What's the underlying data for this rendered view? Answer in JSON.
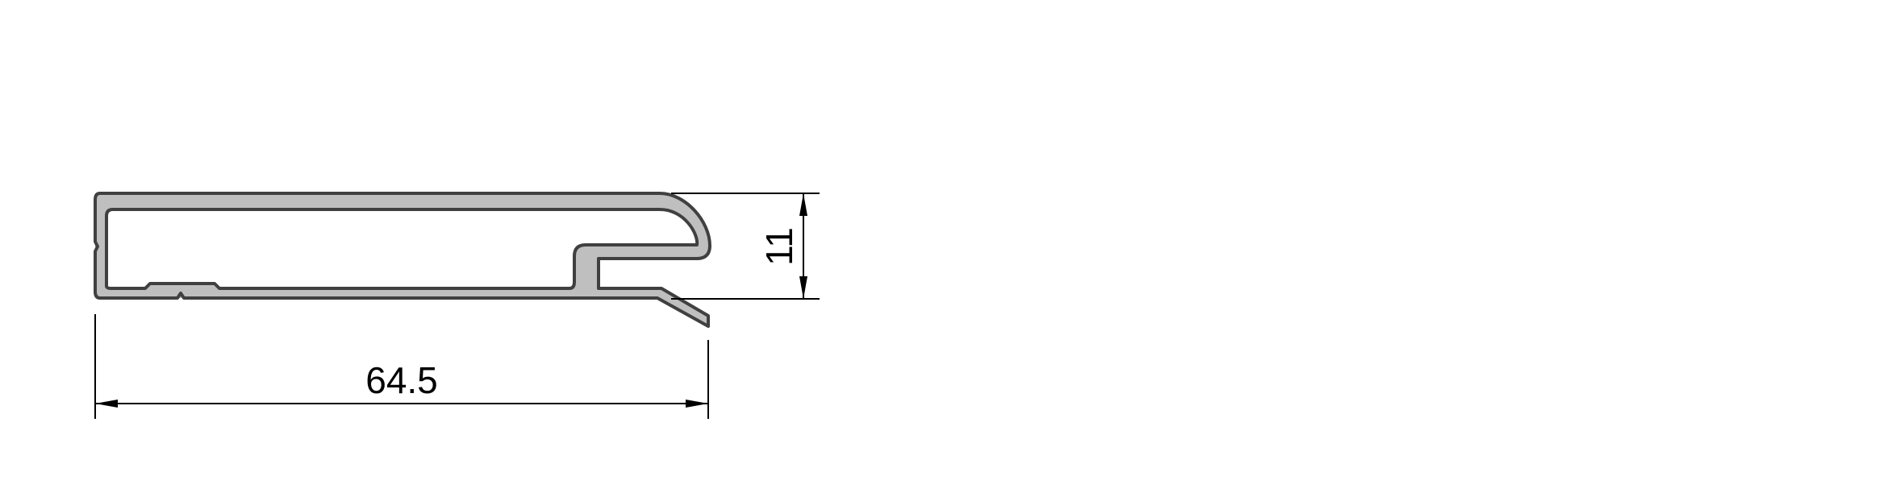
{
  "drawing": {
    "dimensions": {
      "width_label": "64.5",
      "height_label": "11"
    },
    "colors": {
      "profile_fill": "#bfbfbf",
      "profile_edge": "#404040",
      "dimension": "#000000"
    }
  }
}
